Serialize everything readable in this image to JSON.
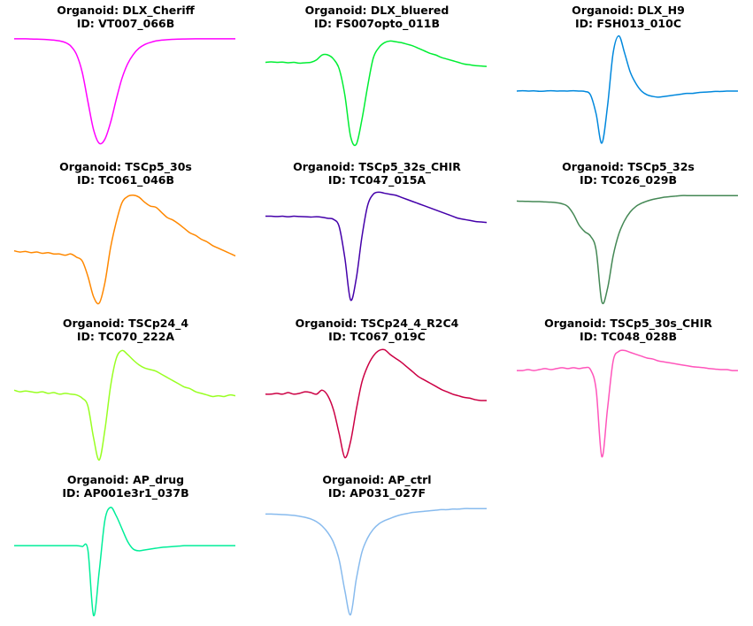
{
  "chart_data": [
    {
      "type": "line",
      "title": "Organoid: DLX_Cheriff",
      "subtitle": "ID: VT007_066B",
      "color": "#ff00ff",
      "grid": false,
      "axes_visible": false,
      "ylim": [
        -1.05,
        0.05
      ],
      "series": [
        {
          "values": [
            0.0,
            0.0,
            0.0,
            -0.002,
            -0.003,
            -0.005,
            -0.008,
            -0.012,
            -0.02,
            -0.035,
            -0.07,
            -0.15,
            -0.32,
            -0.6,
            -0.87,
            -1.0,
            -0.96,
            -0.8,
            -0.58,
            -0.38,
            -0.24,
            -0.15,
            -0.09,
            -0.055,
            -0.035,
            -0.02,
            -0.012,
            -0.008,
            -0.005,
            -0.003,
            -0.002,
            -0.001,
            0.0,
            0.0,
            0.0,
            0.0,
            0.0,
            0.0,
            0.0,
            0.0
          ]
        }
      ]
    },
    {
      "type": "line",
      "title": "Organoid: DLX_bluered",
      "subtitle": "ID: FS007opto_011B",
      "color": "#00ee33",
      "grid": false,
      "axes_visible": false,
      "ylim": [
        -1.05,
        0.35
      ],
      "series": [
        {
          "values": [
            0.0,
            0.005,
            0.0,
            0.003,
            -0.005,
            0.0,
            -0.01,
            -0.005,
            0.0,
            0.03,
            0.09,
            0.09,
            0.04,
            -0.08,
            -0.4,
            -0.9,
            -1.0,
            -0.7,
            -0.3,
            0.05,
            0.18,
            0.24,
            0.26,
            0.25,
            0.24,
            0.22,
            0.2,
            0.17,
            0.14,
            0.11,
            0.09,
            0.06,
            0.04,
            0.02,
            0.0,
            -0.02,
            -0.03,
            -0.04,
            -0.045,
            -0.05
          ]
        }
      ]
    },
    {
      "type": "line",
      "title": "Organoid: DLX_H9",
      "subtitle": "ID: FSH013_010C",
      "color": "#0088dd",
      "grid": false,
      "axes_visible": false,
      "ylim": [
        -0.75,
        0.75
      ],
      "series": [
        {
          "values": [
            0.0,
            0.005,
            0.0,
            0.003,
            -0.003,
            0.0,
            0.005,
            0.0,
            0.002,
            0.0,
            0.005,
            0.0,
            -0.005,
            -0.05,
            -0.3,
            -0.68,
            -0.2,
            0.5,
            0.72,
            0.5,
            0.25,
            0.1,
            0.0,
            -0.05,
            -0.07,
            -0.08,
            -0.07,
            -0.06,
            -0.05,
            -0.04,
            -0.03,
            -0.03,
            -0.02,
            -0.015,
            -0.01,
            -0.005,
            -0.005,
            0.0,
            0.0,
            0.0
          ]
        }
      ]
    },
    {
      "type": "line",
      "title": "Organoid: TSCp5_30s",
      "subtitle": "ID: TC061_046B",
      "color": "#ff8800",
      "grid": false,
      "axes_visible": false,
      "ylim": [
        -0.85,
        0.95
      ],
      "series": [
        {
          "values": [
            0.0,
            -0.02,
            -0.01,
            -0.03,
            -0.02,
            -0.04,
            -0.03,
            -0.05,
            -0.05,
            -0.07,
            -0.05,
            -0.1,
            -0.16,
            -0.4,
            -0.72,
            -0.82,
            -0.5,
            0.05,
            0.45,
            0.75,
            0.85,
            0.87,
            0.84,
            0.76,
            0.7,
            0.68,
            0.6,
            0.52,
            0.48,
            0.42,
            0.35,
            0.28,
            0.24,
            0.18,
            0.14,
            0.08,
            0.04,
            0.0,
            -0.04,
            -0.08
          ]
        }
      ]
    },
    {
      "type": "line",
      "title": "Organoid: TSCp5_32s_CHIR",
      "subtitle": "ID: TC047_015A",
      "color": "#4400aa",
      "grid": false,
      "axes_visible": false,
      "ylim": [
        -0.85,
        0.25
      ],
      "series": [
        {
          "values": [
            0.0,
            0.0,
            -0.003,
            0.0,
            -0.005,
            0.0,
            -0.003,
            -0.005,
            -0.008,
            -0.005,
            -0.01,
            -0.02,
            -0.03,
            -0.1,
            -0.4,
            -0.8,
            -0.6,
            -0.2,
            0.1,
            0.21,
            0.23,
            0.22,
            0.21,
            0.2,
            0.18,
            0.16,
            0.14,
            0.12,
            0.1,
            0.08,
            0.06,
            0.04,
            0.02,
            0.0,
            -0.02,
            -0.03,
            -0.04,
            -0.05,
            -0.055,
            -0.06
          ]
        }
      ]
    },
    {
      "type": "line",
      "title": "Organoid: TSCp5_32s",
      "subtitle": "ID: TC026_029B",
      "color": "#448855",
      "grid": false,
      "axes_visible": false,
      "ylim": [
        -0.95,
        0.1
      ],
      "series": [
        {
          "values": [
            0.0,
            -0.002,
            -0.003,
            -0.005,
            -0.005,
            -0.008,
            -0.01,
            -0.015,
            -0.025,
            -0.05,
            -0.12,
            -0.22,
            -0.28,
            -0.32,
            -0.45,
            -0.92,
            -0.8,
            -0.5,
            -0.3,
            -0.18,
            -0.1,
            -0.05,
            -0.02,
            0.0,
            0.015,
            0.025,
            0.035,
            0.04,
            0.045,
            0.05,
            0.05,
            0.05,
            0.05,
            0.05,
            0.05,
            0.05,
            0.05,
            0.05,
            0.05,
            0.05
          ]
        }
      ]
    },
    {
      "type": "line",
      "title": "Organoid: TSCp24_4",
      "subtitle": "ID: TC070_222A",
      "color": "#99ff22",
      "grid": false,
      "axes_visible": false,
      "ylim": [
        -0.9,
        0.55
      ],
      "series": [
        {
          "values": [
            0.0,
            -0.02,
            -0.01,
            -0.02,
            -0.03,
            -0.02,
            -0.04,
            -0.03,
            -0.05,
            -0.04,
            -0.05,
            -0.06,
            -0.1,
            -0.2,
            -0.6,
            -0.88,
            -0.5,
            0.05,
            0.4,
            0.5,
            0.45,
            0.38,
            0.32,
            0.28,
            0.26,
            0.24,
            0.2,
            0.16,
            0.12,
            0.08,
            0.04,
            0.02,
            -0.02,
            -0.04,
            -0.06,
            -0.08,
            -0.07,
            -0.08,
            -0.06,
            -0.07
          ]
        }
      ]
    },
    {
      "type": "line",
      "title": "Organoid: TSCp24_4_R2C4",
      "subtitle": "ID: TC067_019C",
      "color": "#cc0044",
      "grid": false,
      "axes_visible": false,
      "ylim": [
        -0.85,
        0.6
      ],
      "series": [
        {
          "values": [
            0.0,
            0.0,
            0.01,
            0.0,
            0.02,
            0.0,
            0.01,
            0.03,
            0.02,
            0.0,
            0.05,
            -0.02,
            -0.2,
            -0.5,
            -0.8,
            -0.6,
            -0.2,
            0.15,
            0.35,
            0.48,
            0.55,
            0.56,
            0.5,
            0.45,
            0.4,
            0.34,
            0.28,
            0.22,
            0.18,
            0.14,
            0.1,
            0.06,
            0.03,
            0.0,
            -0.02,
            -0.04,
            -0.05,
            -0.07,
            -0.08,
            -0.08
          ]
        }
      ]
    },
    {
      "type": "line",
      "title": "Organoid: TSCp5_30s_CHIR",
      "subtitle": "ID: TC048_028B",
      "color": "#ff55bb",
      "grid": false,
      "axes_visible": false,
      "ylim": [
        -0.95,
        0.25
      ],
      "series": [
        {
          "values": [
            0.0,
            0.0,
            0.01,
            0.0,
            0.01,
            0.02,
            0.01,
            0.02,
            0.03,
            0.02,
            0.03,
            0.02,
            0.03,
            0.01,
            -0.2,
            -0.9,
            -0.4,
            0.1,
            0.2,
            0.21,
            0.19,
            0.17,
            0.15,
            0.13,
            0.12,
            0.1,
            0.09,
            0.08,
            0.07,
            0.06,
            0.05,
            0.04,
            0.035,
            0.03,
            0.02,
            0.015,
            0.01,
            0.01,
            0.0,
            0.0
          ]
        }
      ]
    },
    {
      "type": "line",
      "title": "Organoid: AP_drug",
      "subtitle": "ID: AP001e3r1_037B",
      "color": "#00ee99",
      "grid": false,
      "axes_visible": false,
      "ylim": [
        -0.85,
        0.5
      ],
      "series": [
        {
          "values": [
            0.0,
            0.0,
            0.0,
            0.0,
            0.0,
            0.0,
            0.0,
            0.0,
            0.0,
            0.0,
            0.0,
            0.0,
            -0.01,
            -0.05,
            -0.82,
            -0.3,
            0.3,
            0.45,
            0.35,
            0.2,
            0.05,
            -0.04,
            -0.06,
            -0.05,
            -0.04,
            -0.03,
            -0.02,
            -0.015,
            -0.01,
            -0.005,
            0.0,
            0.0,
            0.0,
            0.0,
            0.0,
            0.0,
            0.0,
            0.0,
            0.0,
            0.0
          ]
        }
      ]
    },
    {
      "type": "line",
      "title": "Organoid: AP_ctrl",
      "subtitle": "ID: AP031_027F",
      "color": "#88bbee",
      "grid": false,
      "axes_visible": false,
      "ylim": [
        -0.95,
        0.1
      ],
      "series": [
        {
          "values": [
            0.0,
            0.0,
            -0.002,
            -0.005,
            -0.008,
            -0.012,
            -0.02,
            -0.03,
            -0.045,
            -0.07,
            -0.11,
            -0.17,
            -0.26,
            -0.42,
            -0.7,
            -0.92,
            -0.6,
            -0.35,
            -0.22,
            -0.14,
            -0.09,
            -0.06,
            -0.04,
            -0.02,
            -0.005,
            0.005,
            0.015,
            0.02,
            0.025,
            0.03,
            0.035,
            0.04,
            0.04,
            0.045,
            0.045,
            0.05,
            0.05,
            0.05,
            0.05,
            0.05
          ]
        }
      ]
    }
  ]
}
